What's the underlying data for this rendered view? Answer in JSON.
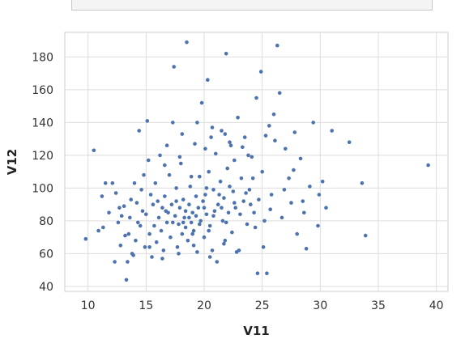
{
  "chart_data": {
    "type": "scatter",
    "title": "",
    "xlabel": "V11",
    "ylabel": "V12",
    "xlim": [
      8,
      41
    ],
    "ylim": [
      37,
      195
    ],
    "x_ticks": [
      10,
      15,
      20,
      25,
      30,
      35,
      40
    ],
    "y_ticks": [
      40,
      60,
      80,
      100,
      120,
      140,
      160,
      180
    ],
    "grid": true,
    "legend": "none",
    "point_color": "#4c72b0",
    "points": [
      [
        9.8,
        69
      ],
      [
        10.5,
        123
      ],
      [
        10.9,
        74
      ],
      [
        11.2,
        95
      ],
      [
        11.5,
        103
      ],
      [
        11.3,
        76
      ],
      [
        12.1,
        103
      ],
      [
        11.8,
        85
      ],
      [
        12.3,
        55
      ],
      [
        12.6,
        79
      ],
      [
        12.8,
        65
      ],
      [
        13.1,
        89
      ],
      [
        13.3,
        44
      ],
      [
        13.4,
        55
      ],
      [
        13.5,
        72
      ],
      [
        13.6,
        82
      ],
      [
        13.8,
        60
      ],
      [
        14.0,
        103
      ],
      [
        14.2,
        91
      ],
      [
        14.4,
        135
      ],
      [
        14.5,
        77
      ],
      [
        14.7,
        86
      ],
      [
        14.9,
        64
      ],
      [
        15.1,
        141
      ],
      [
        15.2,
        117
      ],
      [
        15.3,
        72
      ],
      [
        15.4,
        96
      ],
      [
        15.5,
        58
      ],
      [
        15.6,
        90
      ],
      [
        15.8,
        103
      ],
      [
        15.9,
        67
      ],
      [
        16.1,
        82
      ],
      [
        16.2,
        120
      ],
      [
        16.3,
        74
      ],
      [
        16.4,
        88
      ],
      [
        16.5,
        62
      ],
      [
        16.6,
        95
      ],
      [
        16.8,
        79
      ],
      [
        16.9,
        85
      ],
      [
        17.0,
        108
      ],
      [
        17.1,
        70
      ],
      [
        17.2,
        90
      ],
      [
        17.3,
        140
      ],
      [
        17.4,
        174
      ],
      [
        17.5,
        83
      ],
      [
        17.6,
        100
      ],
      [
        17.7,
        64
      ],
      [
        17.8,
        78
      ],
      [
        17.9,
        88
      ],
      [
        18.0,
        115
      ],
      [
        18.1,
        72
      ],
      [
        18.2,
        93
      ],
      [
        18.3,
        82
      ],
      [
        18.4,
        76
      ],
      [
        18.5,
        189
      ],
      [
        18.6,
        68
      ],
      [
        18.7,
        90
      ],
      [
        18.8,
        101
      ],
      [
        18.9,
        79
      ],
      [
        19.0,
        85
      ],
      [
        19.1,
        74
      ],
      [
        19.2,
        127
      ],
      [
        19.3,
        95
      ],
      [
        19.4,
        61
      ],
      [
        19.5,
        88
      ],
      [
        19.6,
        107
      ],
      [
        19.7,
        80
      ],
      [
        19.8,
        152
      ],
      [
        19.9,
        92
      ],
      [
        20.0,
        70
      ],
      [
        20.1,
        96
      ],
      [
        20.2,
        84
      ],
      [
        20.3,
        166
      ],
      [
        20.4,
        110
      ],
      [
        20.5,
        77
      ],
      [
        20.6,
        131
      ],
      [
        20.7,
        62
      ],
      [
        20.8,
        99
      ],
      [
        20.9,
        86
      ],
      [
        21.0,
        121
      ],
      [
        21.1,
        55
      ],
      [
        21.2,
        90
      ],
      [
        21.4,
        104
      ],
      [
        21.5,
        135
      ],
      [
        21.6,
        80
      ],
      [
        21.7,
        94
      ],
      [
        21.8,
        68
      ],
      [
        21.9,
        182
      ],
      [
        22.0,
        112
      ],
      [
        22.1,
        85
      ],
      [
        22.3,
        126
      ],
      [
        22.4,
        73
      ],
      [
        22.5,
        98
      ],
      [
        22.7,
        88
      ],
      [
        22.9,
        143
      ],
      [
        23.0,
        62
      ],
      [
        23.2,
        106
      ],
      [
        23.4,
        92
      ],
      [
        23.5,
        131
      ],
      [
        23.7,
        78
      ],
      [
        23.9,
        99
      ],
      [
        24.1,
        119
      ],
      [
        24.3,
        85
      ],
      [
        24.5,
        155
      ],
      [
        24.6,
        48
      ],
      [
        24.7,
        93
      ],
      [
        24.9,
        171
      ],
      [
        25.0,
        110
      ],
      [
        25.2,
        80
      ],
      [
        25.4,
        48
      ],
      [
        25.6,
        138
      ],
      [
        25.8,
        96
      ],
      [
        26.1,
        129
      ],
      [
        26.3,
        187
      ],
      [
        26.5,
        158
      ],
      [
        26.7,
        82
      ],
      [
        27.0,
        124
      ],
      [
        27.3,
        106
      ],
      [
        27.5,
        91
      ],
      [
        27.8,
        134
      ],
      [
        28.0,
        72
      ],
      [
        28.3,
        118
      ],
      [
        28.6,
        85
      ],
      [
        28.8,
        63
      ],
      [
        29.1,
        101
      ],
      [
        29.4,
        140
      ],
      [
        29.8,
        77
      ],
      [
        30.2,
        104
      ],
      [
        30.5,
        88
      ],
      [
        31.0,
        135
      ],
      [
        32.5,
        128
      ],
      [
        33.6,
        103
      ],
      [
        33.9,
        71
      ],
      [
        39.3,
        114
      ],
      [
        12.4,
        97
      ],
      [
        12.9,
        83
      ],
      [
        13.2,
        71
      ],
      [
        13.7,
        93
      ],
      [
        14.1,
        68
      ],
      [
        14.3,
        79
      ],
      [
        14.6,
        99
      ],
      [
        15.0,
        84
      ],
      [
        15.7,
        77
      ],
      [
        16.0,
        92
      ],
      [
        16.7,
        86
      ],
      [
        17.3,
        79
      ],
      [
        17.6,
        92
      ],
      [
        18.2,
        79
      ],
      [
        18.4,
        86
      ],
      [
        18.7,
        82
      ],
      [
        19.0,
        72
      ],
      [
        19.3,
        83
      ],
      [
        19.6,
        78
      ],
      [
        20.0,
        88
      ],
      [
        20.2,
        100
      ],
      [
        20.4,
        74
      ],
      [
        20.8,
        83
      ],
      [
        21.3,
        96
      ],
      [
        21.5,
        88
      ],
      [
        21.9,
        79
      ],
      [
        22.2,
        101
      ],
      [
        22.6,
        91
      ],
      [
        23.1,
        84
      ],
      [
        23.6,
        97
      ],
      [
        24.0,
        90
      ],
      [
        24.4,
        76
      ],
      [
        18.1,
        133
      ],
      [
        19.4,
        140
      ],
      [
        20.7,
        137
      ],
      [
        21.8,
        133
      ],
      [
        22.6,
        117
      ],
      [
        23.3,
        125
      ],
      [
        16.8,
        126
      ],
      [
        17.9,
        119
      ],
      [
        26.0,
        145
      ],
      [
        27.7,
        111
      ],
      [
        28.5,
        92
      ],
      [
        29.9,
        96
      ],
      [
        25.1,
        64
      ],
      [
        26.9,
        99
      ],
      [
        24.2,
        106
      ],
      [
        25.7,
        87
      ],
      [
        13.9,
        59
      ],
      [
        15.3,
        64
      ],
      [
        16.4,
        57
      ],
      [
        17.8,
        60
      ],
      [
        19.1,
        65
      ],
      [
        20.5,
        58
      ],
      [
        21.7,
        66
      ],
      [
        22.8,
        61
      ],
      [
        12.7,
        88
      ],
      [
        14.8,
        108
      ],
      [
        16.6,
        114
      ],
      [
        18.9,
        107
      ],
      [
        20.1,
        124
      ],
      [
        22.2,
        128
      ],
      [
        23.8,
        120
      ],
      [
        25.3,
        132
      ]
    ]
  }
}
